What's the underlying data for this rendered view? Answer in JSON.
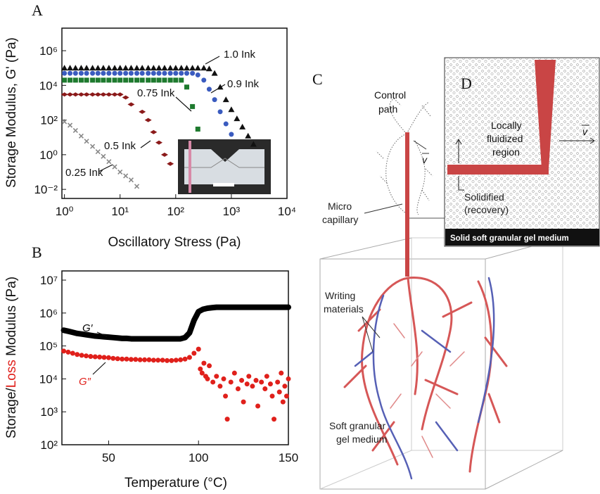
{
  "chart_data": [
    {
      "type": "scatter",
      "panel": "A",
      "xlabel": "Oscillatory Stress (Pa)",
      "ylabel": "Storage Modulus, G' (Pa)",
      "xlog": true,
      "ylog": true,
      "xlim": [
        0.9,
        10000
      ],
      "ylim": [
        0.003,
        20000000
      ],
      "xticks": [
        {
          "value": 1,
          "label": "10⁰"
        },
        {
          "value": 10,
          "label": "10¹"
        },
        {
          "value": 100,
          "label": "10²"
        },
        {
          "value": 1000,
          "label": "10³"
        },
        {
          "value": 10000,
          "label": "10⁴"
        }
      ],
      "yticks": [
        {
          "value": 0.01,
          "label": "10⁻²"
        },
        {
          "value": 1,
          "label": "10⁰"
        },
        {
          "value": 100,
          "label": "10²"
        },
        {
          "value": 10000,
          "label": "10⁴"
        },
        {
          "value": 1000000,
          "label": "10⁶"
        }
      ],
      "x": [
        1,
        1.26,
        1.58,
        2,
        2.5,
        3.2,
        4,
        5,
        6.3,
        8,
        10,
        12.6,
        15.8,
        20,
        25,
        32,
        40,
        50,
        63,
        80,
        100,
        126,
        158,
        200,
        250,
        320,
        400,
        500,
        630,
        800,
        1000,
        1260,
        1580,
        2000,
        2500
      ],
      "series": [
        {
          "name": "1.0 Ink",
          "color": "#111111",
          "marker": "triangle",
          "values": [
            100000,
            100000,
            100000,
            100000,
            100000,
            100000,
            100000,
            100000,
            100000,
            100000,
            100000,
            100000,
            100000,
            100000,
            100000,
            100000,
            100000,
            100000,
            100000,
            100000,
            100000,
            100000,
            100000,
            100000,
            100000,
            100000,
            90000,
            50000,
            8000,
            1500,
            400,
            120,
            40,
            12,
            4
          ]
        },
        {
          "name": "0.9 Ink",
          "color": "#3a5bbf",
          "marker": "circle",
          "values": [
            50000,
            50000,
            50000,
            50000,
            50000,
            50000,
            50000,
            50000,
            50000,
            50000,
            50000,
            50000,
            50000,
            50000,
            50000,
            50000,
            50000,
            50000,
            50000,
            50000,
            50000,
            50000,
            50000,
            50000,
            40000,
            20000,
            6000,
            1500,
            300,
            60,
            15,
            null,
            null,
            null,
            null
          ]
        },
        {
          "name": "0.75 Ink",
          "color": "#1e7a2e",
          "marker": "square",
          "values": [
            20000,
            20000,
            20000,
            20000,
            20000,
            20000,
            20000,
            20000,
            20000,
            20000,
            20000,
            20000,
            20000,
            20000,
            20000,
            20000,
            20000,
            20000,
            20000,
            20000,
            20000,
            20000,
            8000,
            600,
            30,
            null,
            null,
            null,
            null,
            null,
            null,
            null,
            null,
            null,
            null
          ]
        },
        {
          "name": "0.5 Ink",
          "color": "#8b1a1a",
          "marker": "diamond",
          "values": [
            3000,
            3000,
            3000,
            3000,
            3000,
            3000,
            3000,
            3000,
            3000,
            3000,
            3000,
            2000,
            800,
            null,
            300,
            100,
            20,
            5,
            1,
            0.3,
            null,
            null,
            null,
            null,
            null,
            null,
            null,
            null,
            null,
            null,
            null,
            null,
            null,
            null,
            null
          ]
        },
        {
          "name": "0.25 Ink",
          "color": "#888888",
          "marker": "x",
          "values": [
            80,
            50,
            25,
            12,
            6,
            3,
            1.5,
            0.8,
            0.4,
            0.2,
            0.1,
            0.06,
            0.035,
            0.015,
            null,
            null,
            null,
            null,
            null,
            null,
            null,
            null,
            null,
            null,
            null,
            null,
            null,
            null,
            null,
            null,
            null,
            null,
            null,
            null,
            null
          ]
        }
      ]
    },
    {
      "type": "scatter",
      "panel": "B",
      "xlabel": "Temperature (°C)",
      "ylabel_parts": [
        {
          "text": "Storage/",
          "color": "#111111"
        },
        {
          "text": "Loss",
          "color": "#e0201b"
        },
        {
          "text": " Modulus (Pa)",
          "color": "#111111"
        }
      ],
      "xlog": false,
      "ylog": true,
      "xlim": [
        24,
        150
      ],
      "ylim": [
        100,
        19000000
      ],
      "xticks": [
        50,
        100,
        150
      ],
      "yticks": [
        {
          "value": 100,
          "label": "10²"
        },
        {
          "value": 1000,
          "label": "10³"
        },
        {
          "value": 10000,
          "label": "10⁴"
        },
        {
          "value": 100000,
          "label": "10⁵"
        },
        {
          "value": 1000000,
          "label": "10⁶"
        },
        {
          "value": 10000000,
          "label": "10⁷"
        }
      ],
      "series": [
        {
          "name": "G′",
          "color": "#000000",
          "style": "line",
          "x": [
            25,
            27.5,
            30,
            32.5,
            35,
            37.5,
            40,
            42.5,
            45,
            47.5,
            50,
            52.5,
            55,
            57.5,
            60,
            62.5,
            65,
            67.5,
            70,
            72.5,
            75,
            77.5,
            80,
            82.5,
            85,
            87.5,
            90,
            92.5,
            95,
            97.5,
            100,
            102.5,
            105,
            107.5,
            110,
            112.5,
            115,
            117.5,
            120,
            122.5,
            125,
            127.5,
            130,
            132.5,
            135,
            137.5,
            140,
            142.5,
            145,
            147.5,
            150
          ],
          "values": [
            300000,
            280000,
            260000,
            240000,
            230000,
            220000,
            210000,
            200000,
            195000,
            190000,
            185000,
            180000,
            175000,
            170000,
            170000,
            165000,
            165000,
            165000,
            165000,
            165000,
            165000,
            165000,
            165000,
            165000,
            165000,
            165000,
            165000,
            180000,
            250000,
            600000,
            1100000,
            1300000,
            1400000,
            1450000,
            1500000,
            1500000,
            1500000,
            1500000,
            1500000,
            1500000,
            1500000,
            1500000,
            1500000,
            1500000,
            1500000,
            1500000,
            1500000,
            1500000,
            1500000,
            1500000,
            1500000
          ]
        },
        {
          "name": "G″",
          "color": "#e0201b",
          "marker": "circle",
          "x": [
            25,
            27.5,
            30,
            32.5,
            35,
            37.5,
            40,
            42.5,
            45,
            47.5,
            50,
            52.5,
            55,
            57.5,
            60,
            62.5,
            65,
            67.5,
            70,
            72.5,
            75,
            77.5,
            80,
            82.5,
            85,
            87.5,
            90,
            92.5,
            95,
            97.5,
            100,
            101,
            102,
            103,
            104,
            105,
            106,
            108,
            110,
            112,
            114,
            115,
            116,
            118,
            120,
            122,
            124,
            125,
            127,
            128,
            130,
            132,
            133,
            135,
            137,
            138,
            140,
            141,
            142,
            144,
            145,
            146,
            147,
            148,
            149,
            150
          ],
          "values": [
            70000,
            65000,
            60000,
            55000,
            52000,
            50000,
            48000,
            47000,
            46000,
            45000,
            44000,
            42000,
            41000,
            40000,
            40000,
            39000,
            39000,
            38000,
            38000,
            38000,
            37000,
            37000,
            37000,
            36000,
            36000,
            37000,
            38000,
            40000,
            45000,
            60000,
            80000,
            20000,
            15000,
            30000,
            12000,
            10000,
            25000,
            8000,
            12000,
            6000,
            10000,
            3000,
            600,
            8000,
            15000,
            5000,
            9000,
            2000,
            7000,
            12000,
            6000,
            9000,
            1500,
            8000,
            5000,
            12000,
            7000,
            3000,
            600,
            8000,
            4000,
            15000,
            2000,
            6000,
            3000,
            10000
          ]
        }
      ]
    }
  ],
  "diagram": {
    "panel_c": "C",
    "panel_d": "D",
    "control_path": [
      "Control",
      "path"
    ],
    "micro_capillary": [
      "Micro",
      "capillary"
    ],
    "writing_materials": [
      "Writing",
      "materials"
    ],
    "soft_medium": [
      "Soft granular",
      "gel medium"
    ],
    "fluidized": [
      "Locally",
      "fluidized",
      "region"
    ],
    "solidified": [
      "Solidified",
      "(recovery)"
    ],
    "medium_bar": "Solid soft granular gel medium",
    "velocity": "v"
  }
}
